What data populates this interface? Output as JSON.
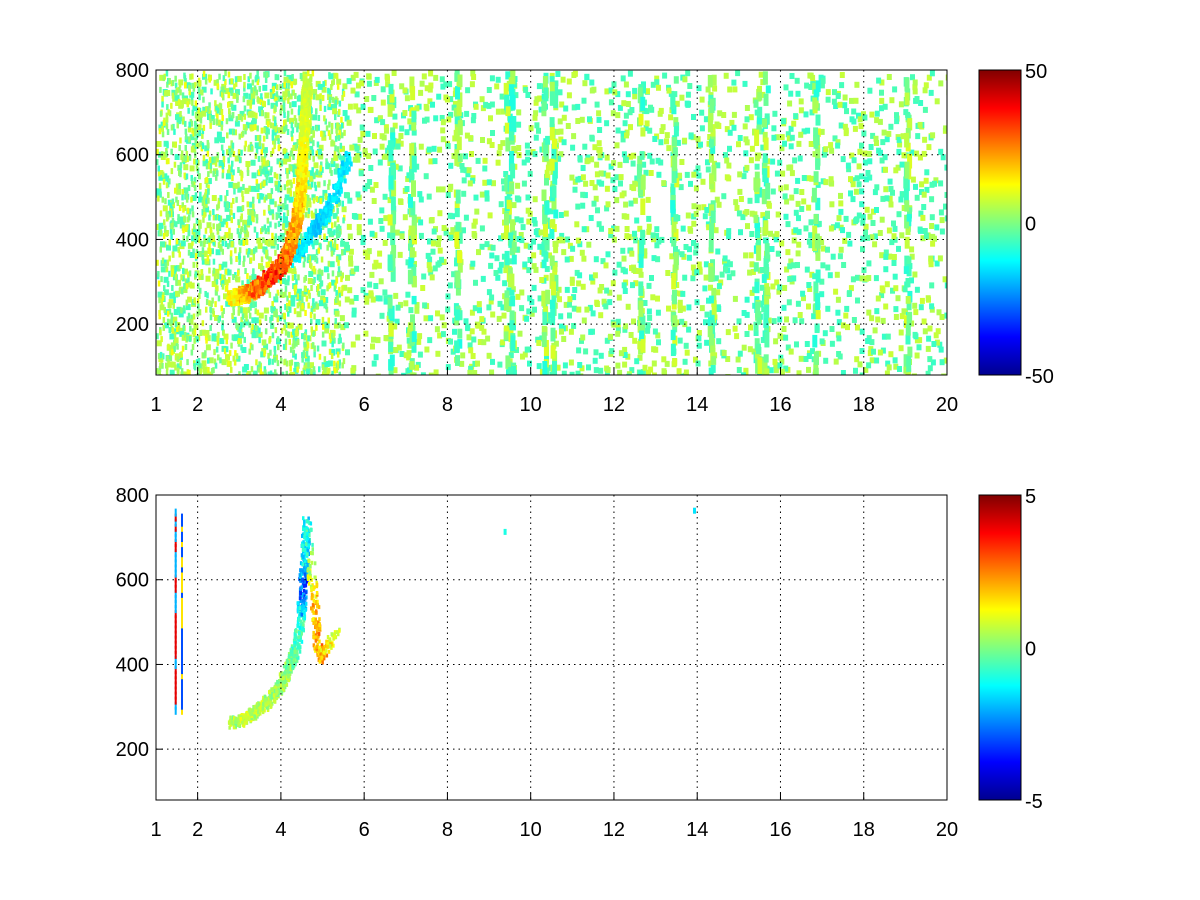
{
  "figure": {
    "background": "#ffffff",
    "colormap": "jet"
  },
  "chart_data": [
    {
      "type": "heatmap",
      "panel": "top",
      "title": "",
      "xlabel": "",
      "ylabel": "",
      "xlim": [
        1,
        20
      ],
      "ylim": [
        80,
        800
      ],
      "xticks": [
        1,
        2,
        4,
        6,
        8,
        10,
        12,
        14,
        16,
        18,
        20
      ],
      "yticks": [
        200,
        400,
        600,
        800
      ],
      "grid": true,
      "color_limits": [
        -50,
        50
      ],
      "colorbar_ticks": [
        -50,
        0,
        50
      ],
      "features": {
        "ridge_points": [
          [
            2.8,
            268,
            15
          ],
          [
            3.1,
            275,
            25
          ],
          [
            3.4,
            290,
            35
          ],
          [
            3.7,
            315,
            42
          ],
          [
            4.0,
            345,
            38
          ],
          [
            4.2,
            390,
            30
          ],
          [
            4.35,
            450,
            25
          ],
          [
            4.45,
            520,
            20
          ],
          [
            4.5,
            600,
            15
          ],
          [
            4.55,
            700,
            12
          ],
          [
            4.6,
            780,
            8
          ]
        ],
        "negative_band": [
          [
            4.3,
            360,
            -15
          ],
          [
            4.7,
            420,
            -18
          ],
          [
            5.0,
            460,
            -15
          ],
          [
            5.3,
            520,
            -15
          ],
          [
            5.6,
            600,
            -12
          ]
        ],
        "noisy_columns_x": [
          6.6,
          7.1,
          8.2,
          9.4,
          9.5,
          10.3,
          10.5,
          12.6,
          13.4,
          14.3,
          15.4,
          15.6,
          16.8,
          19.0
        ],
        "scattered_noise_range": [
          -15,
          15
        ]
      }
    },
    {
      "type": "heatmap",
      "panel": "bottom",
      "title": "",
      "xlabel": "",
      "ylabel": "",
      "xlim": [
        1,
        20
      ],
      "ylim": [
        80,
        800
      ],
      "xticks": [
        1,
        2,
        4,
        6,
        8,
        10,
        12,
        14,
        16,
        18,
        20
      ],
      "yticks": [
        200,
        400,
        600,
        800
      ],
      "grid": true,
      "color_limits": [
        -5,
        5
      ],
      "colorbar_ticks": [
        -5,
        0,
        5
      ],
      "features": {
        "ridge_points": [
          [
            2.8,
            265,
            0.5
          ],
          [
            3.2,
            280,
            0.8
          ],
          [
            3.6,
            310,
            0.6
          ],
          [
            3.9,
            345,
            0.4
          ],
          [
            4.1,
            380,
            0.3
          ],
          [
            4.3,
            430,
            -0.5
          ],
          [
            4.45,
            500,
            -1.0
          ],
          [
            4.5,
            580,
            -4.0
          ],
          [
            4.55,
            650,
            -2.0
          ],
          [
            4.6,
            740,
            -1.5
          ],
          [
            4.8,
            520,
            3.0
          ],
          [
            4.9,
            420,
            2.5
          ],
          [
            5.3,
            480,
            1.0
          ]
        ],
        "vertical_streaks": [
          [
            1.45,
            300,
            780,
            4.0
          ],
          [
            1.6,
            300,
            760,
            -3.0
          ]
        ],
        "isolated_points": [
          [
            9.35,
            720,
            -1.0
          ],
          [
            13.9,
            770,
            -1.5
          ]
        ]
      }
    }
  ]
}
